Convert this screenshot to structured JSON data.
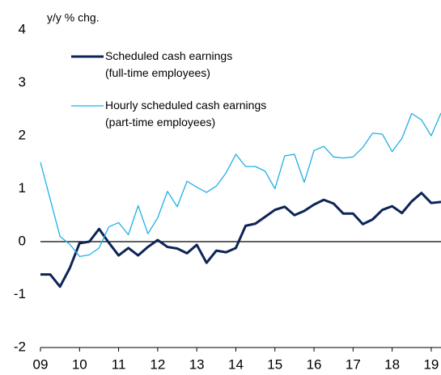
{
  "chart_data": {
    "type": "line",
    "y_label": "y/y % chg.",
    "x": [
      2009,
      2009.25,
      2009.5,
      2009.75,
      2010,
      2010.25,
      2010.5,
      2010.75,
      2011,
      2011.25,
      2011.5,
      2011.75,
      2012,
      2012.25,
      2012.5,
      2012.75,
      2013,
      2013.25,
      2013.5,
      2013.75,
      2014,
      2014.25,
      2014.5,
      2014.75,
      2015,
      2015.25,
      2015.5,
      2015.75,
      2016,
      2016.25,
      2016.5,
      2016.75,
      2017,
      2017.25,
      2017.5,
      2017.75,
      2018,
      2018.25,
      2018.5,
      2018.75,
      2019,
      2019.25
    ],
    "series": [
      {
        "name": "Scheduled cash earnings\n(full-time employees)",
        "color": "#0d2456",
        "values": [
          -0.62,
          -0.62,
          -0.85,
          -0.5,
          -0.03,
          0.0,
          0.24,
          -0.02,
          -0.26,
          -0.12,
          -0.26,
          -0.1,
          0.03,
          -0.1,
          -0.13,
          -0.22,
          -0.06,
          -0.4,
          -0.17,
          -0.2,
          -0.12,
          0.3,
          0.34,
          0.47,
          0.6,
          0.66,
          0.5,
          0.58,
          0.7,
          0.79,
          0.72,
          0.53,
          0.53,
          0.33,
          0.42,
          0.6,
          0.67,
          0.54,
          0.76,
          0.92,
          0.73,
          0.75
        ]
      },
      {
        "name": "Hourly scheduled cash earnings\n(part-time employees)",
        "color": "#1fb0e6",
        "values": [
          1.5,
          0.8,
          0.1,
          -0.05,
          -0.28,
          -0.25,
          -0.12,
          0.28,
          0.36,
          0.13,
          0.68,
          0.15,
          0.45,
          0.95,
          0.66,
          1.14,
          1.03,
          0.93,
          1.05,
          1.3,
          1.65,
          1.42,
          1.42,
          1.33,
          1.0,
          1.62,
          1.65,
          1.12,
          1.72,
          1.8,
          1.6,
          1.58,
          1.6,
          1.78,
          2.05,
          2.03,
          1.7,
          1.95,
          2.42,
          2.3,
          2.0,
          2.43
        ]
      }
    ],
    "xlim": [
      2009,
      2019.25
    ],
    "xticks": [
      {
        "value": 2009,
        "label": "09"
      },
      {
        "value": 2010,
        "label": "10"
      },
      {
        "value": 2011,
        "label": "11"
      },
      {
        "value": 2012,
        "label": "12"
      },
      {
        "value": 2013,
        "label": "13"
      },
      {
        "value": 2014,
        "label": "14"
      },
      {
        "value": 2015,
        "label": "15"
      },
      {
        "value": 2016,
        "label": "16"
      },
      {
        "value": 2017,
        "label": "17"
      },
      {
        "value": 2018,
        "label": "18"
      },
      {
        "value": 2019,
        "label": "19"
      }
    ],
    "ylim": [
      -2,
      4
    ],
    "yticks": [
      -2,
      -1,
      0,
      1,
      2,
      3,
      4
    ],
    "legend": "upper left"
  }
}
